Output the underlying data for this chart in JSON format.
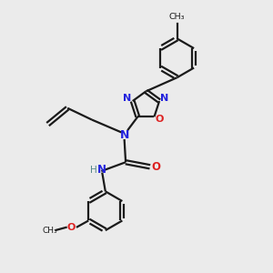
{
  "bg_color": "#ebebeb",
  "bond_color": "#1a1a1a",
  "N_color": "#2222dd",
  "O_color": "#dd2222",
  "H_color": "#558888",
  "figsize": [
    3.0,
    3.0
  ],
  "dpi": 100,
  "xlim": [
    0,
    10
  ],
  "ylim": [
    0,
    10
  ]
}
